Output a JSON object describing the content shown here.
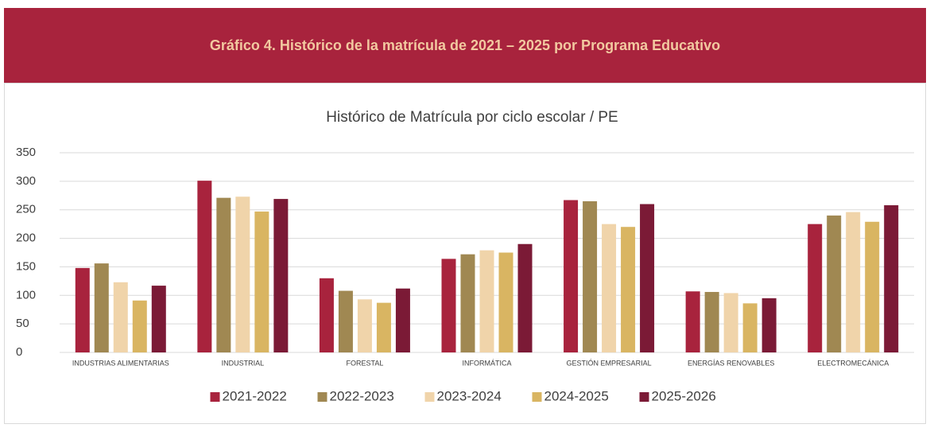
{
  "header": {
    "title": "Gráfico 4. Histórico de la matrícula de 2021 – 2025 por Programa Educativo"
  },
  "chart_data": {
    "type": "bar",
    "title": "Histórico de Matrícula por ciclo escolar / PE",
    "categories": [
      "INDUSTRIAS ALIMENTARIAS",
      "INDUSTRIAL",
      "FORESTAL",
      "INFORMÁTICA",
      "GESTIÓN EMPRESARIAL",
      "ENERGÍAS RENOVABLES",
      "ELECTROMECÁNICA"
    ],
    "series": [
      {
        "name": "2021-2022",
        "color": "#a8233d",
        "values": [
          148,
          301,
          130,
          164,
          267,
          107,
          225
        ]
      },
      {
        "name": "2022-2023",
        "color": "#a08852",
        "values": [
          156,
          271,
          108,
          172,
          265,
          106,
          240
        ]
      },
      {
        "name": "2023-2024",
        "color": "#f0d4aa",
        "values": [
          123,
          273,
          93,
          179,
          225,
          104,
          246
        ]
      },
      {
        "name": "2024-2025",
        "color": "#d9b562",
        "values": [
          91,
          247,
          87,
          175,
          220,
          86,
          229
        ]
      },
      {
        "name": "2025-2026",
        "color": "#7b1a36",
        "values": [
          117,
          269,
          112,
          190,
          260,
          95,
          258
        ]
      }
    ],
    "ylim": [
      0,
      350
    ],
    "yticks": [
      0,
      50,
      100,
      150,
      200,
      250,
      300,
      350
    ],
    "grid": true,
    "legend": "bottom"
  }
}
